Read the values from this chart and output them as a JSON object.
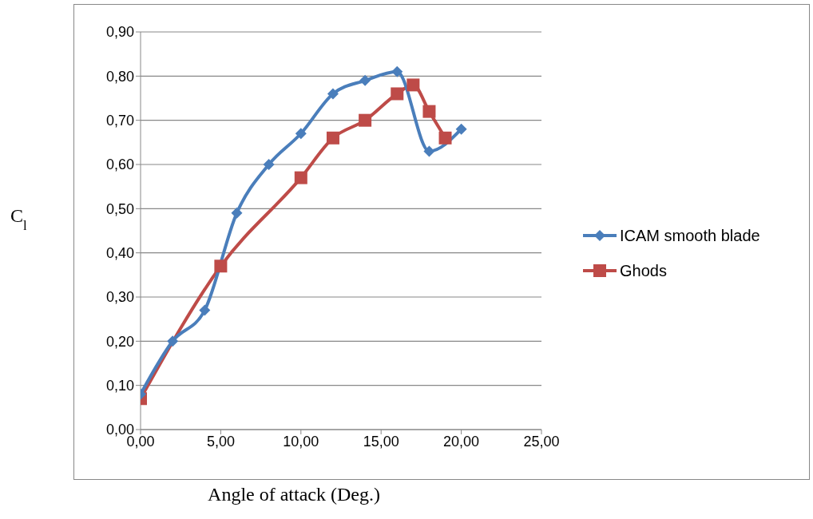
{
  "chart_data": {
    "type": "line",
    "xlabel": "Angle of attack (Deg.)",
    "ylabel": "C$_{l}$",
    "xlim": [
      0,
      25
    ],
    "xticks": [
      {
        "value": 0,
        "label": "0,00"
      },
      {
        "value": 5,
        "label": "5,00"
      },
      {
        "value": 10,
        "label": "10,00"
      },
      {
        "value": 15,
        "label": "15,00"
      },
      {
        "value": 20,
        "label": "20,00"
      },
      {
        "value": 25,
        "label": "25,00"
      }
    ],
    "ylim": [
      0,
      0.9
    ],
    "yticks": [
      {
        "value": 0,
        "label": "0,00"
      },
      {
        "value": 0.1,
        "label": "0,10"
      },
      {
        "value": 0.2,
        "label": "0,20"
      },
      {
        "value": 0.3,
        "label": "0,30"
      },
      {
        "value": 0.4,
        "label": "0,40"
      },
      {
        "value": 0.5,
        "label": "0,50"
      },
      {
        "value": 0.6,
        "label": "0,60"
      },
      {
        "value": 0.7,
        "label": "0,70"
      },
      {
        "value": 0.8,
        "label": "0,80"
      },
      {
        "value": 0.9,
        "label": "0,90"
      }
    ],
    "grid": "y",
    "legend": "right",
    "series": [
      {
        "name": "ICAM smooth blade",
        "color": "#4a7ebb",
        "marker": "diamond",
        "x": [
          0,
          2,
          4,
          6,
          8,
          10,
          12,
          14,
          16,
          18,
          20
        ],
        "values": [
          0.08,
          0.2,
          0.27,
          0.49,
          0.6,
          0.67,
          0.76,
          0.79,
          0.81,
          0.63,
          0.68
        ]
      },
      {
        "name": "Ghods",
        "color": "#be4b48",
        "marker": "square",
        "x": [
          0,
          5,
          10,
          12,
          14,
          16,
          17,
          18,
          19
        ],
        "values": [
          0.07,
          0.37,
          0.57,
          0.66,
          0.7,
          0.76,
          0.78,
          0.72,
          0.66
        ]
      }
    ]
  }
}
